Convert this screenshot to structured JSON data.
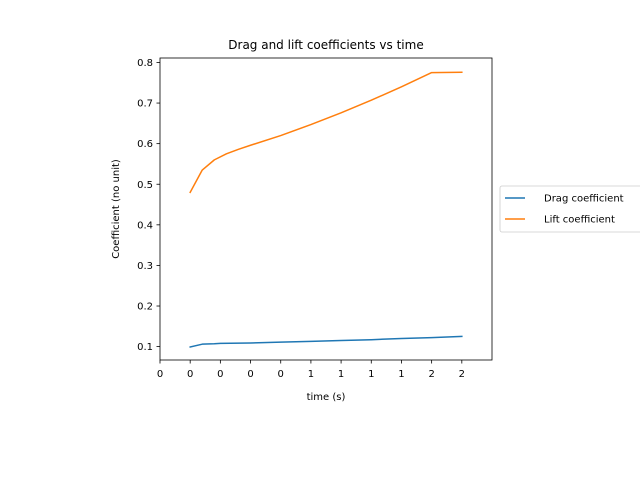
{
  "chart_data": {
    "type": "line",
    "title": "Drag and lift coefficients vs time",
    "xlabel": "time (s)",
    "ylabel": "Coefficient (no unit)",
    "xlim": [
      -0.2,
      2.0
    ],
    "ylim": [
      0.067,
      0.811
    ],
    "xticks": [
      {
        "value": -0.2,
        "label": "0"
      },
      {
        "value": 0.0,
        "label": "0"
      },
      {
        "value": 0.2,
        "label": "0"
      },
      {
        "value": 0.4,
        "label": "0"
      },
      {
        "value": 0.6,
        "label": "0"
      },
      {
        "value": 0.8,
        "label": "1"
      },
      {
        "value": 1.0,
        "label": "1"
      },
      {
        "value": 1.2,
        "label": "1"
      },
      {
        "value": 1.4,
        "label": "1"
      },
      {
        "value": 1.6,
        "label": "2"
      },
      {
        "value": 1.8,
        "label": "2"
      }
    ],
    "yticks": [
      {
        "value": 0.1,
        "label": "0.1"
      },
      {
        "value": 0.2,
        "label": "0.2"
      },
      {
        "value": 0.3,
        "label": "0.3"
      },
      {
        "value": 0.4,
        "label": "0.4"
      },
      {
        "value": 0.5,
        "label": "0.5"
      },
      {
        "value": 0.6,
        "label": "0.6"
      },
      {
        "value": 0.7,
        "label": "0.7"
      },
      {
        "value": 0.8,
        "label": "0.8"
      }
    ],
    "grid": false,
    "legend_position": "outside-right",
    "series": [
      {
        "name": "Drag coefficient",
        "color": "#1f77b4",
        "x": [
          0.0,
          0.08,
          0.16,
          0.2,
          0.4,
          0.6,
          0.8,
          1.0,
          1.2,
          1.4,
          1.6,
          1.8
        ],
        "y": [
          0.099,
          0.106,
          0.107,
          0.108,
          0.109,
          0.111,
          0.113,
          0.115,
          0.117,
          0.12,
          0.122,
          0.125
        ]
      },
      {
        "name": "Lift coefficient",
        "color": "#ff7f0e",
        "x": [
          0.0,
          0.08,
          0.16,
          0.24,
          0.32,
          0.4,
          0.6,
          0.8,
          1.0,
          1.2,
          1.4,
          1.6,
          1.8
        ],
        "y": [
          0.48,
          0.535,
          0.56,
          0.575,
          0.586,
          0.596,
          0.62,
          0.647,
          0.676,
          0.707,
          0.74,
          0.775,
          0.776
        ]
      }
    ]
  }
}
